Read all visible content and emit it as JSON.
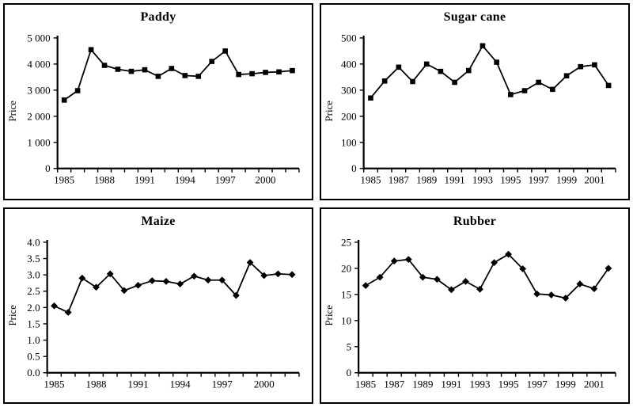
{
  "page": {
    "background": "#ffffff",
    "ink_color": "#000000"
  },
  "chart_data": [
    {
      "type": "line",
      "title": "Paddy",
      "ylabel": "Price",
      "marker": "square",
      "x": [
        1985,
        1986,
        1987,
        1988,
        1989,
        1990,
        1991,
        1992,
        1993,
        1994,
        1995,
        1996,
        1997,
        1998,
        1999,
        2000,
        2001,
        2002
      ],
      "values": [
        2620,
        2980,
        4550,
        3950,
        3800,
        3720,
        3780,
        3530,
        3830,
        3560,
        3530,
        4100,
        4500,
        3600,
        3630,
        3680,
        3700,
        3750
      ],
      "ylim": [
        0,
        5000
      ],
      "ytick_values": [
        0,
        1000,
        2000,
        3000,
        4000,
        5000
      ],
      "ytick_labels": [
        "0",
        "1 000",
        "2 000",
        "3 000",
        "4 000",
        "5 000"
      ],
      "xtick_labels": [
        "1985",
        "1988",
        "1991",
        "1994",
        "1997",
        "2000"
      ],
      "grid": "off",
      "legend": "none"
    },
    {
      "type": "line",
      "title": "Sugar cane",
      "ylabel": "Price",
      "marker": "square",
      "x": [
        1985,
        1986,
        1987,
        1988,
        1989,
        1990,
        1991,
        1992,
        1993,
        1994,
        1995,
        1996,
        1997,
        1998,
        1999,
        2000,
        2001,
        2002
      ],
      "values": [
        270,
        335,
        388,
        333,
        400,
        372,
        330,
        375,
        470,
        407,
        283,
        298,
        330,
        303,
        355,
        390,
        397,
        318
      ],
      "ylim": [
        0,
        500
      ],
      "ytick_values": [
        0,
        100,
        200,
        300,
        400,
        500
      ],
      "ytick_labels": [
        "0",
        "100",
        "200",
        "300",
        "400",
        "500"
      ],
      "xtick_labels": [
        "1985",
        "1987",
        "1989",
        "1991",
        "1993",
        "1995",
        "1997",
        "1999",
        "2001"
      ],
      "grid": "off",
      "legend": "none"
    },
    {
      "type": "line",
      "title": "Maize",
      "ylabel": "Price",
      "marker": "diamond",
      "x": [
        1985,
        1986,
        1987,
        1988,
        1989,
        1990,
        1991,
        1992,
        1993,
        1994,
        1995,
        1996,
        1997,
        1998,
        1999,
        2000,
        2001,
        2002
      ],
      "values": [
        2.05,
        1.85,
        2.9,
        2.62,
        3.03,
        2.52,
        2.68,
        2.82,
        2.8,
        2.72,
        2.96,
        2.84,
        2.84,
        2.37,
        3.38,
        2.98,
        3.03,
        3.01
      ],
      "ylim": [
        0,
        4
      ],
      "ytick_values": [
        0,
        0.5,
        1,
        1.5,
        2,
        2.5,
        3,
        3.5,
        4
      ],
      "ytick_labels": [
        "0.0",
        "0.5",
        "1.0",
        "1.5",
        "2.0",
        "2.5",
        "3.0",
        "3.5",
        "4.0"
      ],
      "xtick_labels": [
        "1985",
        "1988",
        "1991",
        "1994",
        "1997",
        "2000"
      ],
      "grid": "off",
      "legend": "none"
    },
    {
      "type": "line",
      "title": "Rubber",
      "ylabel": "Price",
      "marker": "diamond",
      "x": [
        1985,
        1986,
        1987,
        1988,
        1989,
        1990,
        1991,
        1992,
        1993,
        1994,
        1995,
        1996,
        1997,
        1998,
        1999,
        2000,
        2001,
        2002
      ],
      "values": [
        16.7,
        18.3,
        21.4,
        21.7,
        18.3,
        17.9,
        15.9,
        17.5,
        16.0,
        21.1,
        22.7,
        19.9,
        15.1,
        14.9,
        14.3,
        17.0,
        16.1,
        20.0
      ],
      "ylim": [
        0,
        25
      ],
      "ytick_values": [
        0,
        5,
        10,
        15,
        20,
        25
      ],
      "ytick_labels": [
        "0",
        "5",
        "10",
        "15",
        "20",
        "25"
      ],
      "xtick_labels": [
        "1985",
        "1987",
        "1989",
        "1991",
        "1993",
        "1995",
        "1997",
        "1999",
        "2001"
      ],
      "grid": "off",
      "legend": "none"
    }
  ]
}
